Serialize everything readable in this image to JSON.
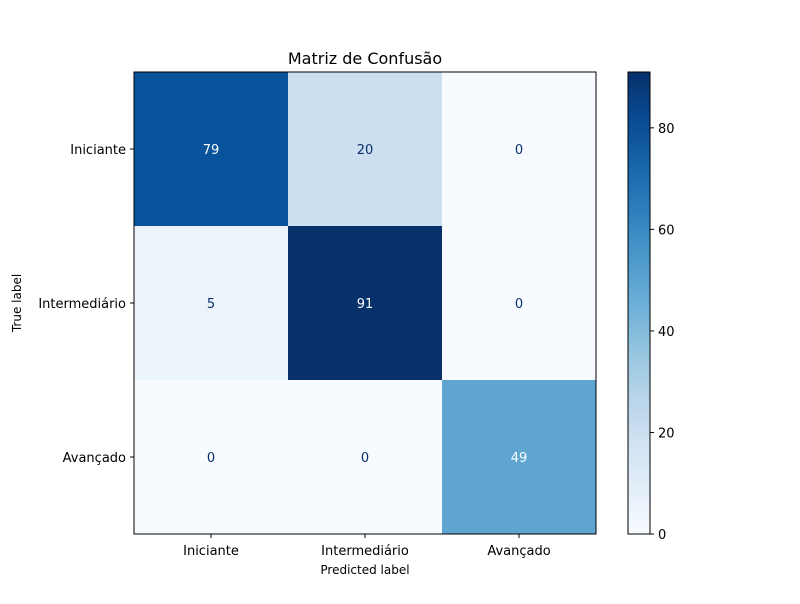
{
  "chart_data": {
    "type": "heatmap",
    "title": "Matriz de Confusão",
    "xlabel": "Predicted label",
    "ylabel": "True label",
    "x_categories": [
      "Iniciante",
      "Intermediário",
      "Avançado"
    ],
    "y_categories": [
      "Iniciante",
      "Intermediário",
      "Avançado"
    ],
    "values": [
      [
        79,
        20,
        0
      ],
      [
        5,
        91,
        0
      ],
      [
        0,
        0,
        49
      ]
    ],
    "colormap": "Blues",
    "colorbar": {
      "range": [
        0,
        91
      ],
      "ticks": [
        0,
        20,
        40,
        60,
        80
      ],
      "tick_labels": [
        "0",
        "20",
        "40",
        "60",
        "80"
      ]
    },
    "colors": {
      "low": "#f7fbff",
      "high": "#08306b",
      "text_dark": "#08306b",
      "text_light": "#ffffff"
    }
  }
}
